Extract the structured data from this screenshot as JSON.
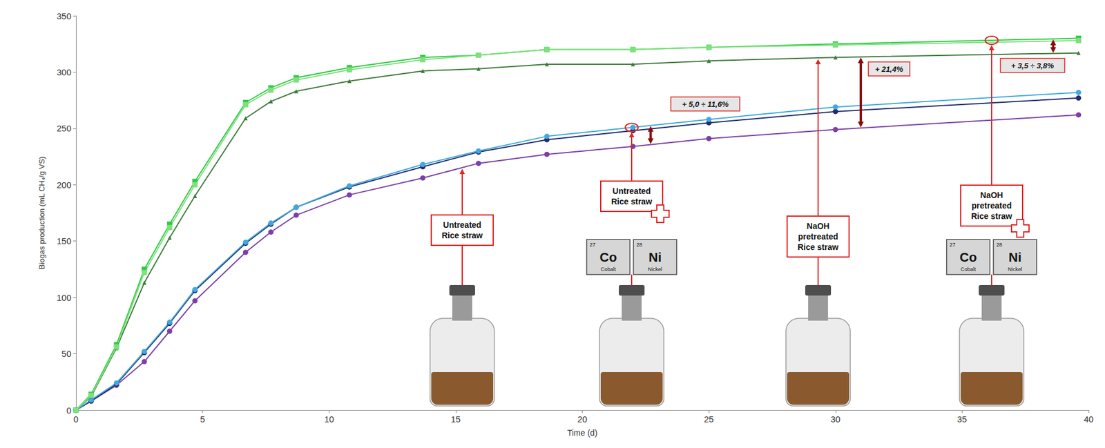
{
  "chart_data": {
    "type": "line",
    "x_label": "Time (d)",
    "y_label": "Biogas production (mL CH₄/g VS)",
    "xlim": [
      0,
      40
    ],
    "xticks": [
      0,
      5,
      10,
      15,
      20,
      25,
      30,
      35,
      40
    ],
    "ylim": [
      0,
      350
    ],
    "yticks": [
      0,
      50,
      100,
      150,
      200,
      250,
      300,
      350
    ],
    "grid": false,
    "x": [
      0,
      0.6,
      1.6,
      2.7,
      3.7,
      4.7,
      6.7,
      7.7,
      8.7,
      10.8,
      13.7,
      15.9,
      18.6,
      22,
      25,
      30,
      39.6
    ],
    "series": [
      {
        "color": "#7b3fa6",
        "marker": "circle",
        "values": [
          0,
          8,
          22,
          43,
          70,
          97,
          140,
          158,
          173,
          191,
          206,
          219,
          227,
          234,
          241,
          249,
          262
        ]
      },
      {
        "color": "#1f2d6b",
        "marker": "circle",
        "values": [
          0,
          8,
          23,
          51,
          77,
          106,
          148,
          165,
          180,
          198,
          216,
          229,
          240,
          248,
          255,
          265,
          277
        ]
      },
      {
        "color": "#3fa9e0",
        "marker": "circle",
        "values": [
          0,
          9,
          24,
          52,
          78,
          107,
          149,
          166,
          180,
          199,
          218,
          230,
          243,
          251,
          258,
          269,
          282
        ]
      },
      {
        "color": "#3d7a3a",
        "marker": "triangle",
        "values": [
          0,
          12,
          55,
          113,
          153,
          190,
          259,
          274,
          283,
          292,
          301,
          303,
          307,
          307,
          310,
          313,
          317
        ]
      },
      {
        "color": "#2ecc40",
        "marker": "square",
        "values": [
          0,
          14,
          58,
          125,
          165,
          203,
          273,
          286,
          295,
          304,
          313,
          315,
          320,
          320,
          322,
          325,
          330
        ]
      },
      {
        "color": "#7fe07f",
        "marker": "square",
        "values": [
          0,
          13,
          56,
          122,
          162,
          200,
          271,
          284,
          293,
          302,
          311,
          315,
          320,
          320,
          322,
          324,
          328
        ]
      }
    ],
    "annotations": [
      {
        "lines": [
          "Untreated",
          "Rice straw"
        ]
      },
      {
        "lines": [
          "Untreated",
          "Rice straw"
        ],
        "elements": [
          {
            "number": 27,
            "symbol": "Co",
            "name": "Cobalt"
          },
          {
            "number": 28,
            "symbol": "Ni",
            "name": "Nickel"
          }
        ]
      },
      {
        "lines": [
          "NaOH",
          "pretreated",
          "Rice straw"
        ]
      },
      {
        "lines": [
          "NaOH",
          "pretreated",
          "Rice straw"
        ],
        "elements": [
          {
            "number": 27,
            "symbol": "Co",
            "name": "Cobalt"
          },
          {
            "number": 28,
            "symbol": "Ni",
            "name": "Nickel"
          }
        ]
      }
    ],
    "gains": [
      "+ 5,0 ÷ 11,6%",
      "+ 21,4%",
      "+ 3,5 ÷ 3,8%"
    ]
  }
}
